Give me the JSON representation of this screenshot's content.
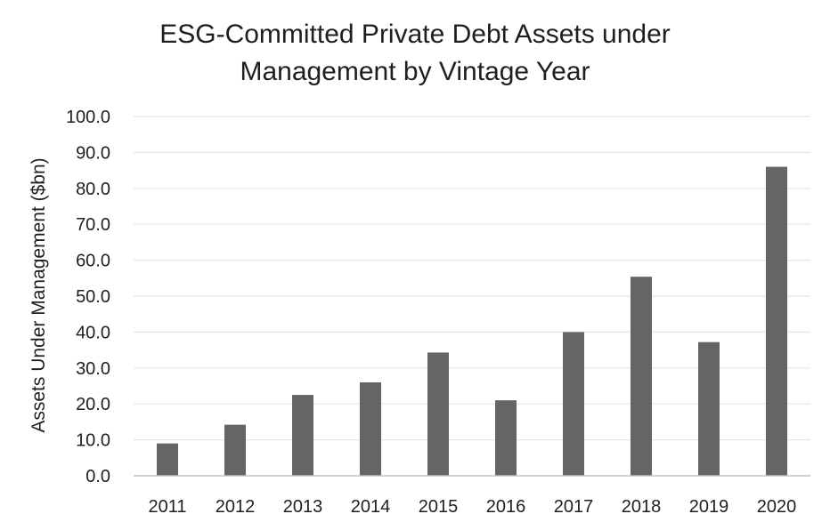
{
  "chart_data": {
    "type": "bar",
    "title_lines": [
      "ESG-Committed Private Debt Assets under",
      "Management by Vintage Year"
    ],
    "xlabel": "",
    "ylabel": "Assets Under Management  ($bn)",
    "categories": [
      "2011",
      "2012",
      "2013",
      "2014",
      "2015",
      "2016",
      "2017",
      "2018",
      "2019",
      "2020"
    ],
    "values": [
      9.0,
      14.2,
      22.5,
      26.0,
      34.3,
      21.0,
      40.0,
      55.4,
      37.2,
      86.0
    ],
    "ylim": [
      0,
      100
    ],
    "yticks": [
      "0.0",
      "10.0",
      "20.0",
      "30.0",
      "40.0",
      "50.0",
      "60.0",
      "70.0",
      "80.0",
      "90.0",
      "100.0"
    ],
    "grid": true,
    "legend": "none",
    "colors": {
      "bar": "#666565",
      "grid": "#e6e6e6",
      "axis": "#bfbfbf",
      "text": "#1f1f1f"
    }
  }
}
